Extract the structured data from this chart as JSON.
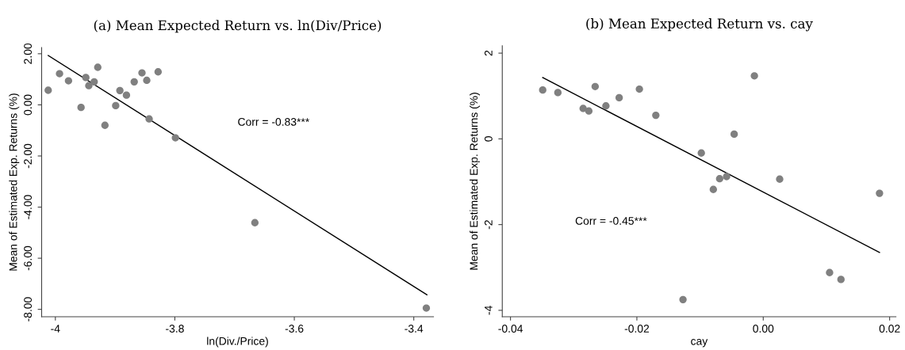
{
  "chart_data": [
    {
      "type": "scatter",
      "title": "(a) Mean Expected Return vs. ln(Div/Price)",
      "xlabel": "ln(Div./Price)",
      "ylabel": "Mean of Estimated Exp. Returns (%)",
      "annotations": [
        "Corr = -0.83***"
      ],
      "grid": false,
      "xlim": [
        -4.023,
        -3.367
      ],
      "xticks": [
        -4,
        -3.8,
        -3.6,
        -3.4
      ],
      "ylim": [
        -8.29,
        2.24
      ],
      "yticks": [
        {
          "value": -8,
          "label": "-8.00"
        },
        {
          "value": -6,
          "label": "-6.00"
        },
        {
          "value": -4,
          "label": "-4.00"
        },
        {
          "value": -2,
          "label": "-2.00"
        },
        {
          "value": 0,
          "label": "0.00"
        },
        {
          "value": 2,
          "label": "2.00"
        }
      ],
      "series": [
        {
          "marker": "circle",
          "color": "#808080",
          "x": [
            -4.012,
            -3.993,
            -3.978,
            -3.957,
            -3.949,
            -3.944,
            -3.935,
            -3.929,
            -3.917,
            -3.899,
            -3.892,
            -3.881,
            -3.868,
            -3.855,
            -3.847,
            -3.843,
            -3.828,
            -3.799,
            -3.666,
            -3.379
          ],
          "values": [
            0.57,
            1.22,
            0.94,
            -0.1,
            1.07,
            0.75,
            0.9,
            1.47,
            -0.8,
            -0.03,
            0.56,
            0.38,
            0.9,
            1.25,
            0.96,
            -0.55,
            1.29,
            -1.29,
            -4.61,
            -7.95
          ]
        },
        {
          "type": "line",
          "color": "#000000",
          "x": [
            -4.012,
            -3.378
          ],
          "values": [
            1.93,
            -7.43
          ]
        }
      ]
    },
    {
      "type": "scatter",
      "title": "(b) Mean Expected Return vs. cay",
      "xlabel": "cay",
      "ylabel": "Mean of Estimated Exp. Returns (%)",
      "annotations": [
        "Corr = -0.45***"
      ],
      "grid": false,
      "xlim": [
        -0.0413,
        0.021
      ],
      "xticks": [
        -0.04,
        -0.02,
        {
          "value": 0,
          "label": "0.00"
        },
        0.02
      ],
      "ylim": [
        -4.15,
        2.17
      ],
      "yticks": [
        -4,
        -2,
        0,
        2
      ],
      "series": [
        {
          "marker": "circle",
          "color": "#808080",
          "x": [
            -0.0349,
            -0.0325,
            -0.0285,
            -0.0276,
            -0.0266,
            -0.0249,
            -0.0228,
            -0.0196,
            -0.017,
            -0.0127,
            -0.0098,
            -0.0079,
            -0.0069,
            -0.0058,
            -0.0046,
            -0.0014,
            0.0026,
            0.0105,
            0.0123,
            0.0184
          ],
          "values": [
            1.14,
            1.08,
            0.71,
            0.65,
            1.22,
            0.77,
            0.96,
            1.16,
            0.55,
            -3.75,
            -0.33,
            -1.18,
            -0.93,
            -0.88,
            0.11,
            1.47,
            -0.94,
            -3.12,
            -3.28,
            -1.27
          ]
        },
        {
          "type": "line",
          "color": "#000000",
          "x": [
            -0.0349,
            0.0184
          ],
          "values": [
            1.43,
            -2.65
          ]
        }
      ]
    }
  ]
}
